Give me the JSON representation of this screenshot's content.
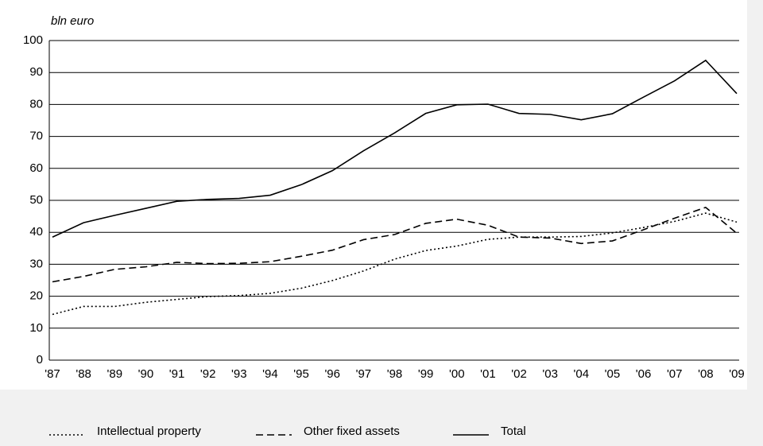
{
  "chart_data": {
    "type": "line",
    "y_label": "bln euro",
    "categories": [
      "'87",
      "'88",
      "'89",
      "'90",
      "'91",
      "'92",
      "'93",
      "'94",
      "'95",
      "'96",
      "'97",
      "'98",
      "'99",
      "'00",
      "'01",
      "'02",
      "'03",
      "'04",
      "'05",
      "'06",
      "'07",
      "'08",
      "'09"
    ],
    "series": [
      {
        "name": "Intellectual property",
        "color": "#000000",
        "dash": "2,3",
        "values": [
          14.3,
          16.8,
          16.8,
          18.1,
          19,
          19.9,
          20.2,
          20.9,
          22.5,
          24.9,
          27.9,
          31.6,
          34.3,
          35.7,
          37.8,
          38.5,
          38.5,
          38.7,
          39.8,
          41.5,
          43.4,
          46,
          43.2
        ]
      },
      {
        "name": "Other fixed assets",
        "color": "#000000",
        "dash": "9,5",
        "values": [
          24.5,
          26.2,
          28.4,
          29.2,
          30.6,
          30.2,
          30.3,
          30.8,
          32.5,
          34.4,
          37.7,
          39.3,
          42.8,
          44.1,
          42.2,
          38.5,
          38.2,
          36.5,
          37.3,
          40.8,
          44.4,
          47.8,
          39.7
        ]
      },
      {
        "name": "Total",
        "color": "#000000",
        "dash": "none",
        "values": [
          38.5,
          43,
          45.3,
          47.5,
          49.7,
          50.3,
          50.6,
          51.6,
          54.9,
          59.3,
          65.5,
          71.1,
          77.2,
          79.9,
          80.1,
          77.2,
          76.9,
          75.2,
          77.1,
          82.3,
          87.4,
          93.8,
          83.4
        ]
      }
    ],
    "ylim": [
      0,
      100
    ],
    "yticks": [
      0,
      10,
      20,
      30,
      40,
      50,
      60,
      70,
      80,
      90,
      100
    ],
    "grid": true,
    "legend": "bottom"
  }
}
